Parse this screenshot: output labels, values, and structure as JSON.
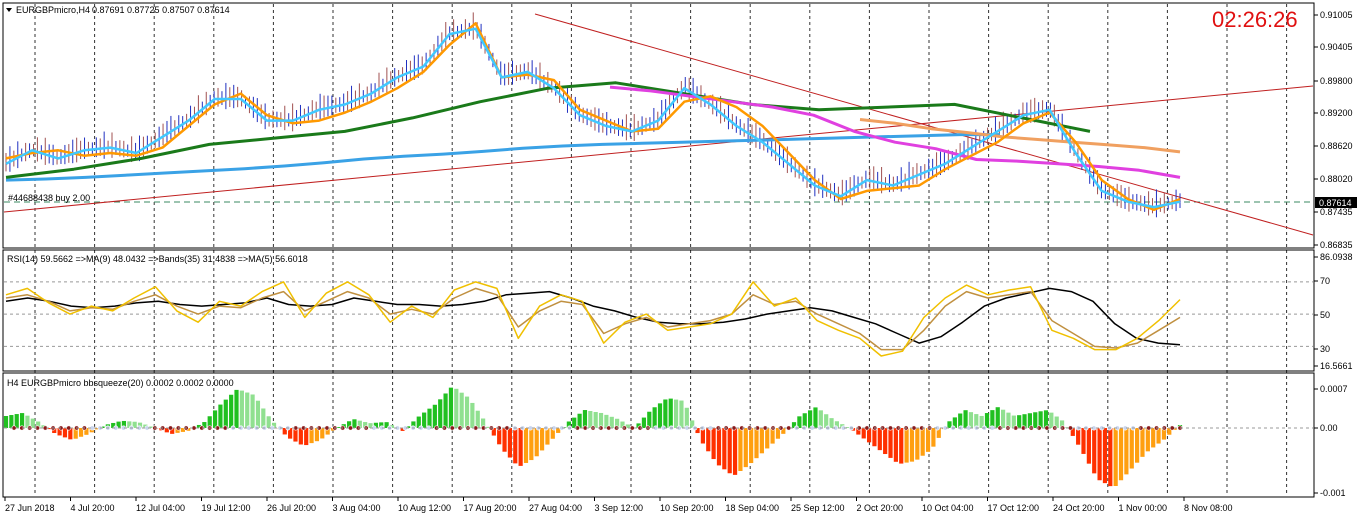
{
  "chart_data": {
    "type": "line",
    "window": {
      "symbol_header": "EURGBPmicro,H4",
      "ohlc_text": "0.87691 0.87725 0.87507 0.87614",
      "clock": "02:26:26",
      "trade_label": "#44688438 buy 2.00",
      "current_price_label": "0.87614"
    },
    "price_pane": {
      "y_ticks": [
        "0.91005",
        "0.90405",
        "0.89800",
        "0.89200",
        "0.88620",
        "0.88020",
        "0.87614",
        "0.87435",
        "0.86835"
      ],
      "ylim": [
        0.8668,
        0.9112
      ],
      "buy_level": 0.8761,
      "series": [
        {
          "color": "#3aa2e6",
          "values": [
            0.879,
            0.8792,
            0.8795,
            0.8799,
            0.8803,
            0.8807,
            0.8811,
            0.8816,
            0.8822,
            0.8829,
            0.8834,
            0.8838,
            0.8843,
            0.8849,
            0.8853,
            0.8856,
            0.8858,
            0.886,
            0.8862,
            0.8864,
            0.8866,
            0.8868,
            0.887,
            0.8872,
            0.8874,
            0.8874
          ]
        },
        {
          "color": "#1a7a1a",
          "values": [
            0.8795,
            0.881,
            0.883,
            0.8856,
            0.8868,
            0.888,
            0.8905,
            0.8935,
            0.896,
            0.897,
            0.895,
            0.893,
            0.892,
            0.8925,
            0.893,
            0.8905,
            0.888
          ]
        },
        {
          "color": "#e040e0",
          "values": [
            0.8962,
            0.8955,
            0.8945,
            0.8935,
            0.8925,
            0.891,
            0.888,
            0.886,
            0.8848,
            0.8828,
            0.8825,
            0.882,
            0.8815,
            0.8808,
            0.8795
          ]
        },
        {
          "color": "#f0a060",
          "values": [
            0.8902,
            0.8895,
            0.8885,
            0.8878,
            0.887,
            0.8865,
            0.886,
            0.8855,
            0.885,
            0.8842
          ]
        },
        {
          "color": "#ff9900",
          "values": [
            0.883,
            0.884,
            0.8845,
            0.8835,
            0.884,
            0.8835,
            0.885,
            0.889,
            0.893,
            0.895,
            0.891,
            0.8895,
            0.89,
            0.8915,
            0.8935,
            0.896,
            0.899,
            0.904,
            0.908,
            0.898,
            0.8985,
            0.8975,
            0.892,
            0.89,
            0.888,
            0.8885,
            0.8935,
            0.8945,
            0.8925,
            0.889,
            0.884,
            0.879,
            0.8755,
            0.877,
            0.8775,
            0.878,
            0.881,
            0.8835,
            0.886,
            0.8895,
            0.8915,
            0.886,
            0.879,
            0.8755,
            0.8735,
            0.8755
          ]
        },
        {
          "color": "#40c8ff",
          "values": [
            0.882,
            0.8845,
            0.883,
            0.8845,
            0.885,
            0.884,
            0.887,
            0.89,
            0.894,
            0.894,
            0.89,
            0.89,
            0.892,
            0.893,
            0.895,
            0.898,
            0.9,
            0.906,
            0.907,
            0.898,
            0.899,
            0.896,
            0.891,
            0.889,
            0.888,
            0.89,
            0.896,
            0.893,
            0.889,
            0.886,
            0.882,
            0.878,
            0.876,
            0.879,
            0.878,
            0.88,
            0.882,
            0.885,
            0.888,
            0.891,
            0.892,
            0.884,
            0.877,
            0.875,
            0.874,
            0.875
          ]
        }
      ]
    },
    "rsi_pane": {
      "header": "RSI(14) 59.5662  =>MA(9) 48.0432  =>Bands(35) 31.4838  =>MA(5) 56.6018",
      "y_ticks": [
        "86.0938",
        "70",
        "50",
        "30",
        "16.5661"
      ],
      "ylim": [
        16.5661,
        86.0938
      ],
      "rsi": [
        62,
        66,
        57,
        50,
        55,
        52,
        60,
        67,
        52,
        45,
        58,
        55,
        64,
        70,
        48,
        63,
        70,
        62,
        45,
        55,
        48,
        65,
        70,
        66,
        35,
        55,
        62,
        58,
        32,
        45,
        50,
        40,
        42,
        44,
        50,
        70,
        55,
        60,
        46,
        40,
        35,
        24,
        27,
        48,
        60,
        68,
        62,
        65,
        67,
        40,
        35,
        28,
        28,
        35,
        46,
        59
      ],
      "ma9": [
        60,
        62,
        58,
        52,
        54,
        53,
        58,
        62,
        55,
        50,
        55,
        54,
        60,
        64,
        52,
        58,
        64,
        60,
        50,
        53,
        50,
        60,
        66,
        62,
        42,
        52,
        58,
        56,
        38,
        44,
        48,
        42,
        44,
        46,
        50,
        62,
        56,
        58,
        50,
        44,
        38,
        28,
        28,
        40,
        55,
        64,
        60,
        62,
        64,
        46,
        38,
        30,
        29,
        32,
        40,
        48
      ],
      "bands": [
        58,
        60,
        58,
        55,
        54,
        55,
        57,
        58,
        56,
        55,
        56,
        57,
        60,
        56,
        55,
        56,
        60,
        58,
        56,
        56,
        55,
        56,
        58,
        62,
        63,
        64,
        60,
        55,
        52,
        48,
        45,
        44,
        44,
        45,
        47,
        50,
        52,
        54,
        52,
        48,
        44,
        38,
        32,
        36,
        45,
        55,
        60,
        63,
        66,
        64,
        58,
        44,
        35,
        32,
        31
      ]
    },
    "squeeze_pane": {
      "header": "H4 EURGBPmicro bbsqueeze(20) 0.0002 0.0002 0.0000",
      "y_ticks": [
        "0.0007",
        "0.00",
        "-0.001"
      ],
      "ylim": [
        -0.0011,
        0.0008
      ],
      "histogram": [
        0.0002,
        0.00025,
        0.0001,
        -0.0001,
        -0.0002,
        -0.0001,
        5e-05,
        0.00012,
        0.0001,
        0.0,
        -0.0001,
        -5e-05,
        0.0001,
        0.0004,
        0.00065,
        0.00055,
        0.00015,
        -0.00015,
        -0.0003,
        -0.0002,
        0.0,
        0.00015,
        8e-05,
        0.0001,
        -5e-05,
        0.0002,
        0.0004,
        0.0007,
        0.0005,
        0.0001,
        -0.00035,
        -0.00065,
        -0.0005,
        -0.0002,
        0.0001,
        0.0003,
        0.00025,
        0.00015,
        0.0,
        0.0003,
        0.0005,
        0.00045,
        -0.0002,
        -0.0006,
        -0.0008,
        -0.0006,
        -0.00035,
        -0.0001,
        0.0002,
        0.00035,
        0.00015,
        0.0,
        -0.0002,
        -0.0004,
        -0.0006,
        -0.00055,
        -0.00035,
        0.0001,
        0.0003,
        0.0002,
        0.00035,
        0.0002,
        0.00025,
        0.0003,
        0.0001,
        -0.00035,
        -0.00085,
        -0.001,
        -0.0007,
        -0.0004,
        -0.0002,
        5e-05
      ]
    },
    "x_ticks": [
      "27 Jun 2018",
      "4 Jul 20:00",
      "12 Jul 04:00",
      "19 Jul 12:00",
      "26 Jul 20:00",
      "3 Aug 04:00",
      "10 Aug 12:00",
      "17 Aug 20:00",
      "27 Aug 04:00",
      "3 Sep 12:00",
      "10 Sep 20:00",
      "18 Sep 04:00",
      "25 Sep 12:00",
      "2 Oct 20:00",
      "10 Oct 04:00",
      "17 Oct 12:00",
      "24 Oct 20:00",
      "1 Nov 00:00",
      "8 Nov 08:00"
    ],
    "colors": {
      "background": "#ffffff",
      "rsi": "#f0c000",
      "ma": "#c09040",
      "bands": "#000000",
      "hist_up": "#20c020",
      "hist_up_light": "#90e090",
      "hist_down": "#ff3000",
      "hist_down_light": "#ff9f10",
      "trend": "#c02020",
      "grid": "#000000"
    }
  }
}
